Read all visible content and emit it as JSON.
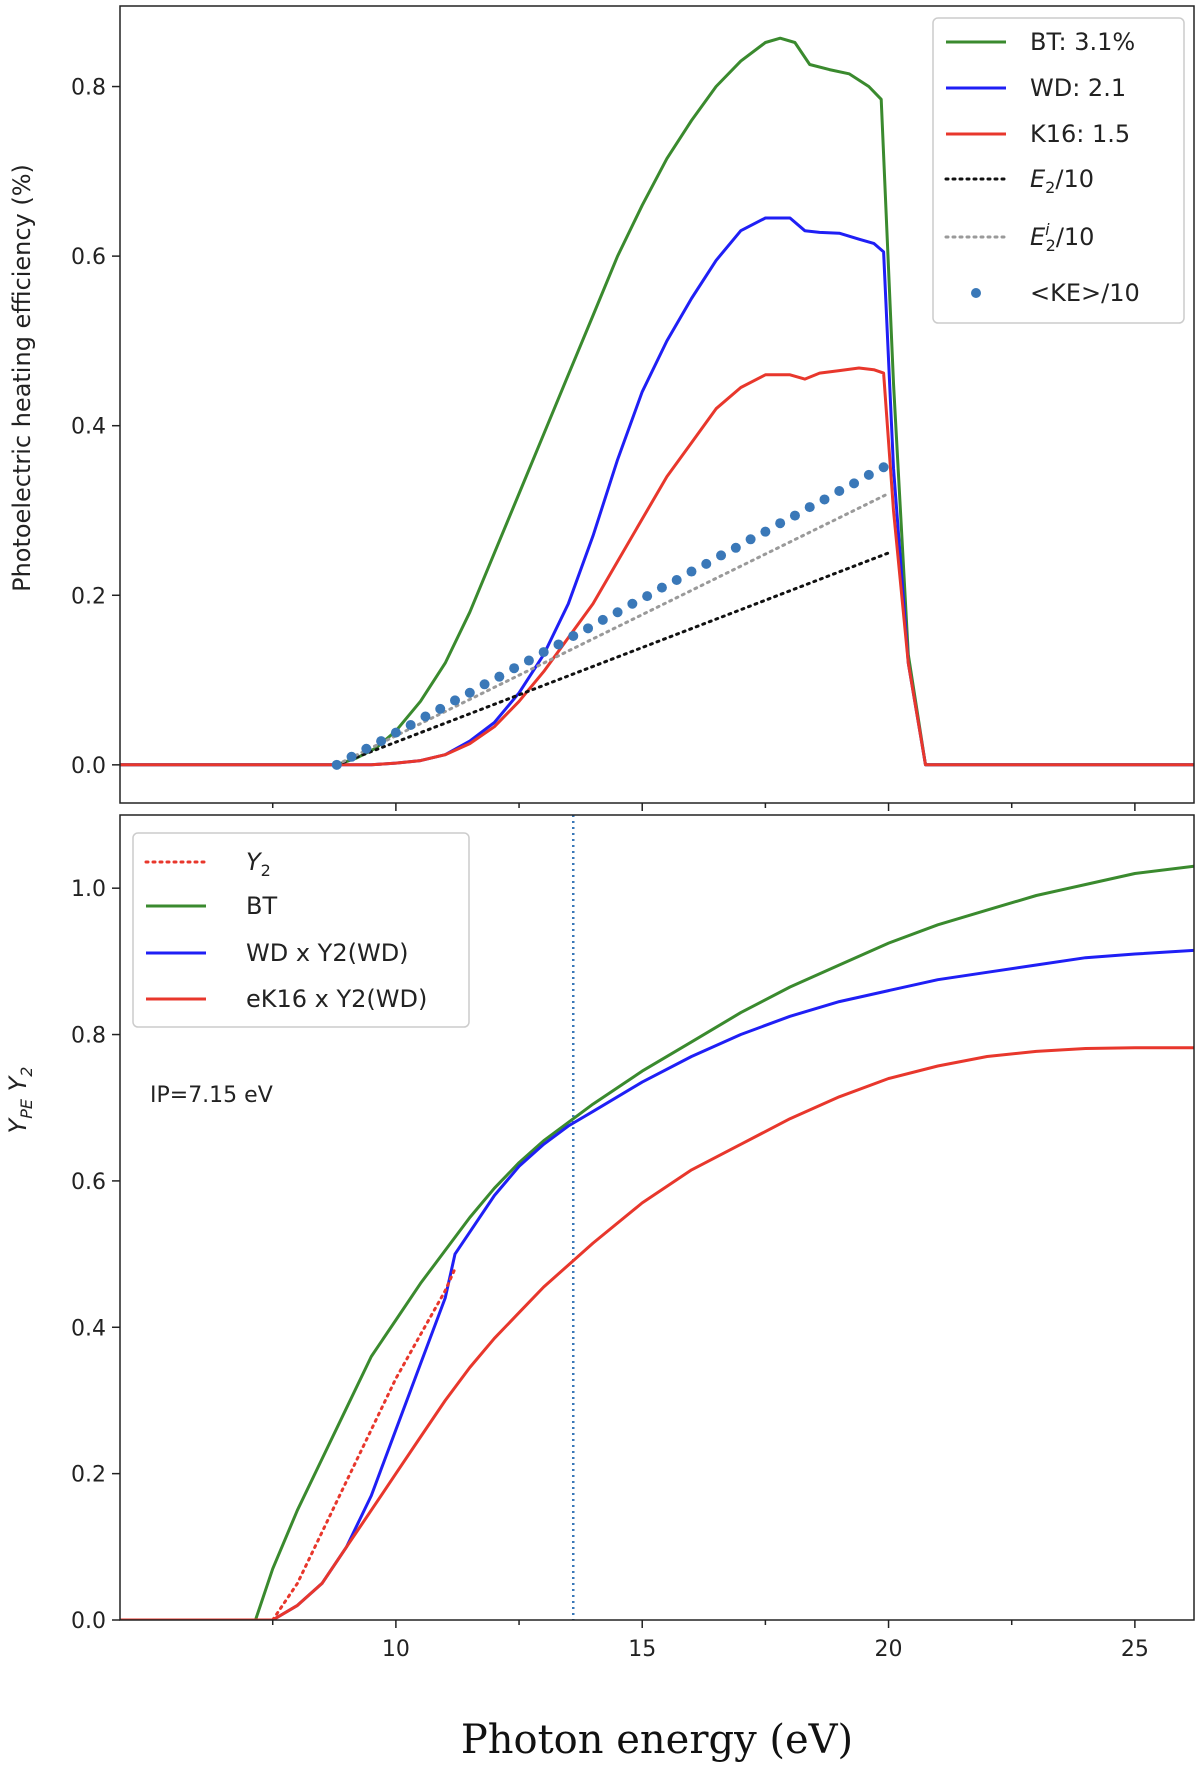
{
  "chart_data": [
    {
      "type": "line",
      "panel": "top",
      "title": "",
      "xlabel": "",
      "ylabel": "Photoelectric heating efficiency (%)",
      "xlim": [
        4.4,
        26.2
      ],
      "ylim": [
        -0.045,
        0.895
      ],
      "yticks": [
        "0.0",
        "0.2",
        "0.4",
        "0.6",
        "0.8"
      ],
      "ytick_values": [
        0.0,
        0.2,
        0.4,
        0.6,
        0.8
      ],
      "legend_position": "top-right",
      "series": [
        {
          "name": "BT: 3.1%",
          "color": "#3a8a2e",
          "style": "solid",
          "x": [
            4.4,
            8.8,
            9.2,
            9.6,
            10.0,
            10.5,
            11.0,
            11.5,
            12.0,
            12.5,
            13.0,
            13.5,
            14.0,
            14.5,
            15.0,
            15.5,
            16.0,
            16.5,
            17.0,
            17.5,
            17.8,
            18.1,
            18.4,
            18.8,
            19.2,
            19.6,
            19.85,
            20.1,
            20.4,
            20.75,
            26.2
          ],
          "values": [
            0.0,
            0.0,
            0.008,
            0.02,
            0.04,
            0.075,
            0.12,
            0.18,
            0.25,
            0.32,
            0.39,
            0.46,
            0.53,
            0.6,
            0.66,
            0.715,
            0.76,
            0.8,
            0.83,
            0.852,
            0.857,
            0.852,
            0.826,
            0.82,
            0.815,
            0.8,
            0.785,
            0.45,
            0.13,
            0.0,
            0.0
          ]
        },
        {
          "name": "WD: 2.1",
          "color": "#1f1ff5",
          "style": "solid",
          "x": [
            4.4,
            8.8,
            9.5,
            10.0,
            10.5,
            11.0,
            11.5,
            12.0,
            12.5,
            13.0,
            13.5,
            14.0,
            14.5,
            15.0,
            15.5,
            16.0,
            16.5,
            17.0,
            17.5,
            17.8,
            18.0,
            18.3,
            18.6,
            19.0,
            19.4,
            19.7,
            19.9,
            20.1,
            20.4,
            20.75,
            26.2
          ],
          "values": [
            0.0,
            0.0,
            0.0,
            0.002,
            0.005,
            0.012,
            0.028,
            0.05,
            0.085,
            0.13,
            0.19,
            0.27,
            0.36,
            0.44,
            0.5,
            0.55,
            0.595,
            0.63,
            0.645,
            0.645,
            0.645,
            0.63,
            0.628,
            0.627,
            0.62,
            0.615,
            0.605,
            0.35,
            0.12,
            0.0,
            0.0
          ]
        },
        {
          "name": "K16: 1.5",
          "color": "#e8372c",
          "style": "solid",
          "x": [
            4.4,
            8.8,
            9.5,
            10.0,
            10.5,
            11.0,
            11.5,
            12.0,
            12.5,
            13.0,
            13.5,
            14.0,
            14.5,
            15.0,
            15.5,
            16.0,
            16.5,
            17.0,
            17.5,
            17.8,
            18.0,
            18.3,
            18.6,
            19.0,
            19.4,
            19.7,
            19.9,
            20.1,
            20.4,
            20.75,
            26.2
          ],
          "values": [
            0.0,
            0.0,
            0.0,
            0.002,
            0.005,
            0.012,
            0.025,
            0.045,
            0.075,
            0.11,
            0.15,
            0.19,
            0.24,
            0.29,
            0.34,
            0.38,
            0.42,
            0.445,
            0.46,
            0.46,
            0.46,
            0.455,
            0.462,
            0.465,
            0.468,
            0.466,
            0.462,
            0.3,
            0.12,
            0.0,
            0.0
          ]
        },
        {
          "name": "E2/10",
          "label_base": "E",
          "label_sub": "2",
          "label_sup": "",
          "label_tail": "/10",
          "color": "#111111",
          "style": "dotted",
          "x": [
            8.8,
            20.0
          ],
          "values": [
            0.0,
            0.25
          ]
        },
        {
          "name": "E2i/10",
          "label_base": "E",
          "label_sub": "2",
          "label_sup": "i",
          "label_tail": "/10",
          "color": "#9a9a9a",
          "style": "dotted",
          "x": [
            8.8,
            20.0
          ],
          "values": [
            0.0,
            0.32
          ]
        },
        {
          "name": "<KE>/10",
          "color": "#3a78b8",
          "style": "markers",
          "x": [
            8.8,
            9.1,
            9.4,
            9.7,
            10.0,
            10.3,
            10.6,
            10.9,
            11.2,
            11.5,
            11.8,
            12.1,
            12.4,
            12.7,
            13.0,
            13.3,
            13.6,
            13.9,
            14.2,
            14.5,
            14.8,
            15.1,
            15.4,
            15.7,
            16.0,
            16.3,
            16.6,
            16.9,
            17.2,
            17.5,
            17.8,
            18.1,
            18.4,
            18.7,
            19.0,
            19.3,
            19.6,
            19.9
          ],
          "values": [
            0.0,
            0.0095,
            0.019,
            0.028,
            0.038,
            0.047,
            0.057,
            0.066,
            0.076,
            0.085,
            0.095,
            0.104,
            0.114,
            0.123,
            0.133,
            0.142,
            0.152,
            0.161,
            0.171,
            0.18,
            0.19,
            0.199,
            0.209,
            0.218,
            0.228,
            0.237,
            0.247,
            0.256,
            0.266,
            0.275,
            0.285,
            0.294,
            0.304,
            0.313,
            0.323,
            0.332,
            0.342,
            0.351
          ]
        }
      ]
    },
    {
      "type": "line",
      "panel": "bottom",
      "title": "",
      "xlabel": "Photon energy (eV)",
      "ylabel": "Y_PE Y_2",
      "ylabel_parts": {
        "base1": "Y",
        "sub1": "PE",
        "base2": " Y",
        "sub2": "2"
      },
      "xlim": [
        4.4,
        26.2
      ],
      "ylim": [
        0.0,
        1.1
      ],
      "xticks": [
        "10",
        "15",
        "20",
        "25"
      ],
      "xtick_values": [
        10,
        15,
        20,
        25
      ],
      "yticks": [
        "0.0",
        "0.2",
        "0.4",
        "0.6",
        "0.8",
        "1.0"
      ],
      "ytick_values": [
        0.0,
        0.2,
        0.4,
        0.6,
        0.8,
        1.0
      ],
      "vline_x": 13.6,
      "annotation": "IP=7.15 eV",
      "legend_position": "top-left",
      "series": [
        {
          "name": "Y2",
          "label_base": "Y",
          "label_sub": "2",
          "color": "#e8372c",
          "style": "dotted",
          "x": [
            7.5,
            8.0,
            8.5,
            9.0,
            9.5,
            10.0,
            10.5,
            11.0,
            11.2
          ],
          "values": [
            0.0,
            0.05,
            0.12,
            0.19,
            0.26,
            0.33,
            0.39,
            0.45,
            0.48
          ]
        },
        {
          "name": "BT",
          "color": "#3a8a2e",
          "style": "solid",
          "x": [
            4.4,
            7.15,
            7.5,
            8.0,
            8.5,
            9.0,
            9.5,
            10.0,
            10.5,
            11.0,
            11.5,
            12.0,
            12.5,
            13.0,
            13.5,
            14.0,
            15.0,
            16.0,
            17.0,
            18.0,
            19.0,
            20.0,
            21.0,
            22.0,
            23.0,
            24.0,
            25.0,
            26.2
          ],
          "values": [
            0.0,
            0.0,
            0.07,
            0.15,
            0.22,
            0.29,
            0.36,
            0.41,
            0.46,
            0.505,
            0.55,
            0.59,
            0.625,
            0.655,
            0.68,
            0.705,
            0.75,
            0.79,
            0.83,
            0.865,
            0.895,
            0.925,
            0.95,
            0.97,
            0.99,
            1.005,
            1.02,
            1.03
          ]
        },
        {
          "name": "WD x Y2(WD)",
          "color": "#1f1ff5",
          "style": "solid",
          "x": [
            4.4,
            7.5,
            8.0,
            8.5,
            9.0,
            9.5,
            10.0,
            10.5,
            11.0,
            11.2,
            11.5,
            12.0,
            12.5,
            13.0,
            13.5,
            14.0,
            15.0,
            16.0,
            17.0,
            18.0,
            19.0,
            20.0,
            21.0,
            22.0,
            23.0,
            24.0,
            25.0,
            26.2
          ],
          "values": [
            0.0,
            0.0,
            0.02,
            0.05,
            0.1,
            0.17,
            0.26,
            0.35,
            0.44,
            0.5,
            0.53,
            0.58,
            0.62,
            0.65,
            0.675,
            0.695,
            0.735,
            0.77,
            0.8,
            0.825,
            0.845,
            0.86,
            0.875,
            0.885,
            0.895,
            0.905,
            0.91,
            0.915
          ]
        },
        {
          "name": "eK16 x Y2(WD)",
          "color": "#e8372c",
          "style": "solid",
          "x": [
            4.4,
            7.5,
            8.0,
            8.5,
            9.0,
            9.5,
            10.0,
            10.5,
            11.0,
            11.5,
            12.0,
            12.5,
            13.0,
            13.5,
            14.0,
            15.0,
            16.0,
            17.0,
            18.0,
            19.0,
            20.0,
            21.0,
            22.0,
            23.0,
            24.0,
            25.0,
            26.2
          ],
          "values": [
            0.0,
            0.0,
            0.02,
            0.05,
            0.1,
            0.15,
            0.2,
            0.25,
            0.3,
            0.345,
            0.385,
            0.42,
            0.455,
            0.485,
            0.515,
            0.57,
            0.615,
            0.65,
            0.685,
            0.715,
            0.74,
            0.757,
            0.77,
            0.777,
            0.781,
            0.782,
            0.782
          ]
        }
      ]
    }
  ]
}
